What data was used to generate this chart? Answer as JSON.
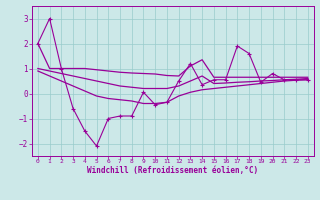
{
  "xlabel": "Windchill (Refroidissement éolien,°C)",
  "bg_color": "#cce8e8",
  "line_color": "#990099",
  "grid_color": "#99cccc",
  "x_data": [
    0,
    1,
    2,
    3,
    4,
    5,
    6,
    7,
    8,
    9,
    10,
    11,
    12,
    13,
    14,
    15,
    16,
    17,
    18,
    19,
    20,
    21,
    22,
    23
  ],
  "y_main": [
    2.0,
    3.0,
    1.0,
    -0.6,
    -1.5,
    -2.1,
    -1.0,
    -0.9,
    -0.9,
    0.05,
    -0.45,
    -0.35,
    0.5,
    1.2,
    0.35,
    0.55,
    0.55,
    1.9,
    1.6,
    0.45,
    0.8,
    0.55,
    0.55,
    0.55
  ],
  "y_upper": [
    2.0,
    1.0,
    1.0,
    1.0,
    1.0,
    0.95,
    0.9,
    0.85,
    0.82,
    0.8,
    0.78,
    0.72,
    0.7,
    1.1,
    1.35,
    0.65,
    0.65,
    0.65,
    0.65,
    0.65,
    0.65,
    0.65,
    0.65,
    0.65
  ],
  "y_mid": [
    1.0,
    0.9,
    0.8,
    0.7,
    0.6,
    0.5,
    0.4,
    0.3,
    0.25,
    0.2,
    0.2,
    0.2,
    0.3,
    0.5,
    0.7,
    0.4,
    0.42,
    0.45,
    0.47,
    0.5,
    0.52,
    0.55,
    0.57,
    0.6
  ],
  "y_lower": [
    0.9,
    0.7,
    0.5,
    0.3,
    0.1,
    -0.1,
    -0.2,
    -0.25,
    -0.3,
    -0.4,
    -0.4,
    -0.35,
    -0.1,
    0.05,
    0.15,
    0.2,
    0.25,
    0.3,
    0.35,
    0.4,
    0.45,
    0.5,
    0.53,
    0.55
  ],
  "ylim": [
    -2.5,
    3.5
  ],
  "xlim": [
    -0.5,
    23.5
  ],
  "yticks": [
    -2,
    -1,
    0,
    1,
    2,
    3
  ]
}
